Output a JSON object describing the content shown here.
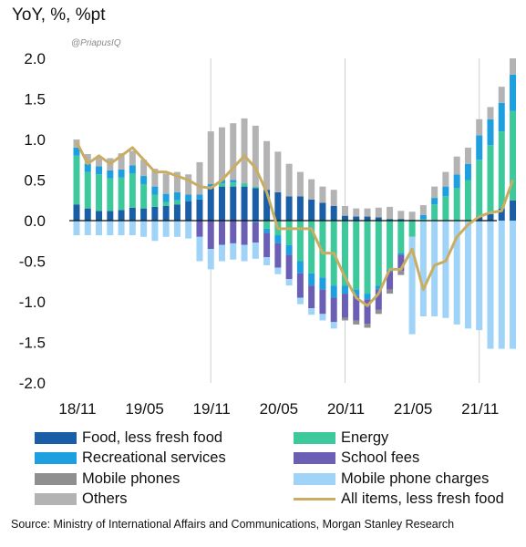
{
  "title": "YoY, %, %pt",
  "watermark": "@PriapusIQ",
  "source": "Source: Ministry of International Affairs and   Communications, Morgan Stanley Research",
  "colors": {
    "food": "#1b5ea8",
    "recreation": "#1ea0e0",
    "mobile_phones": "#8f8f8f",
    "others": "#b3b3b3",
    "energy": "#3ec99c",
    "school_fees": "#6a5fb5",
    "mobile_charges": "#9fd3f7",
    "all_items": "#c9ad63",
    "grid": "#cfcfcf"
  },
  "legend": [
    {
      "key": "food",
      "label": "Food, less fresh food",
      "kind": "bar"
    },
    {
      "key": "energy",
      "label": "Energy",
      "kind": "bar"
    },
    {
      "key": "recreation",
      "label": "Recreational services",
      "kind": "bar"
    },
    {
      "key": "school_fees",
      "label": "School fees",
      "kind": "bar"
    },
    {
      "key": "mobile_phones",
      "label": "Mobile phones",
      "kind": "bar"
    },
    {
      "key": "mobile_charges",
      "label": "Mobile phone charges",
      "kind": "bar"
    },
    {
      "key": "others",
      "label": "Others",
      "kind": "bar"
    },
    {
      "key": "all_items",
      "label": "All items, less fresh food",
      "kind": "line"
    }
  ],
  "chart_data": {
    "type": "bar",
    "stacked": true,
    "ylabel": "YoY, %, %pt",
    "ylim": [
      -2.0,
      2.0
    ],
    "yticks": [
      "2.0",
      "1.5",
      "1.0",
      "0.5",
      "0.0",
      "-0.5",
      "-1.0",
      "-1.5",
      "-2.0"
    ],
    "grid": "vertical at year ticks",
    "x_tick_labels": [
      {
        "label": "18/11",
        "month": 0
      },
      {
        "label": "19/05",
        "month": 6
      },
      {
        "label": "19/11",
        "month": 12
      },
      {
        "label": "20/05",
        "month": 18
      },
      {
        "label": "20/11",
        "month": 24
      },
      {
        "label": "21/05",
        "month": 30
      },
      {
        "label": "21/11",
        "month": 36
      }
    ],
    "x_start": "2018/11",
    "series": [
      {
        "key": "food",
        "name": "Food, less fresh food",
        "values": [
          0.2,
          0.15,
          0.12,
          0.12,
          0.13,
          0.16,
          0.15,
          0.17,
          0.18,
          0.2,
          0.24,
          0.26,
          0.4,
          0.42,
          0.42,
          0.42,
          0.4,
          0.38,
          0.35,
          0.3,
          0.3,
          0.26,
          0.22,
          0.18,
          0.06,
          0.05,
          0.05,
          0.04,
          0.02,
          0.02,
          0.01,
          0.0,
          0.0,
          0.0,
          0.0,
          0.0,
          0.05,
          0.08,
          0.15,
          0.25
        ]
      },
      {
        "key": "energy",
        "name": "Energy",
        "values": [
          0.6,
          0.45,
          0.45,
          0.4,
          0.4,
          0.42,
          0.3,
          0.15,
          0.05,
          0.05,
          0.0,
          0.0,
          0.0,
          0.04,
          0.05,
          0.04,
          0.02,
          -0.1,
          -0.18,
          -0.3,
          -0.5,
          -0.65,
          -0.7,
          -0.8,
          -0.8,
          -0.85,
          -0.9,
          -0.8,
          -0.6,
          -0.4,
          -0.2,
          0.02,
          0.2,
          0.3,
          0.4,
          0.5,
          0.7,
          0.85,
          0.95,
          1.1
        ]
      },
      {
        "key": "recreation",
        "name": "Recreational services",
        "values": [
          0.1,
          0.1,
          0.1,
          0.1,
          0.1,
          0.1,
          0.1,
          0.1,
          0.1,
          0.1,
          0.08,
          0.06,
          0.05,
          0.04,
          0.03,
          0.0,
          -0.02,
          -0.05,
          -0.1,
          -0.12,
          -0.15,
          -0.15,
          -0.15,
          -0.15,
          -0.1,
          -0.08,
          -0.07,
          -0.05,
          -0.03,
          -0.02,
          0.0,
          0.05,
          0.08,
          0.12,
          0.17,
          0.2,
          0.3,
          0.32,
          0.35,
          0.45
        ]
      },
      {
        "key": "school_fees",
        "name": "School fees",
        "values": [
          0.0,
          0.0,
          0.0,
          0.0,
          0.0,
          0.0,
          0.0,
          0.0,
          0.0,
          0.0,
          0.0,
          -0.2,
          -0.35,
          -0.3,
          -0.28,
          -0.3,
          -0.25,
          -0.3,
          -0.3,
          -0.3,
          -0.3,
          -0.28,
          -0.3,
          -0.3,
          -0.3,
          -0.3,
          -0.3,
          -0.25,
          -0.22,
          -0.2,
          0.0,
          0.0,
          0.0,
          0.0,
          0.0,
          0.0,
          0.0,
          0.0,
          0.0,
          0.0
        ]
      },
      {
        "key": "mobile_phones",
        "name": "Mobile phones",
        "values": [
          0.0,
          0.0,
          0.0,
          0.0,
          0.0,
          0.0,
          0.0,
          0.0,
          0.0,
          0.0,
          0.0,
          0.0,
          0.0,
          0.0,
          0.0,
          0.0,
          0.0,
          0.0,
          0.0,
          0.0,
          0.0,
          0.0,
          0.0,
          0.0,
          -0.03,
          -0.05,
          -0.05,
          -0.05,
          -0.05,
          -0.05,
          0.0,
          0.0,
          0.0,
          0.0,
          0.0,
          0.0,
          0.0,
          0.0,
          0.0,
          0.0
        ]
      },
      {
        "key": "others",
        "name": "Others",
        "values": [
          0.1,
          0.12,
          0.12,
          0.15,
          0.2,
          0.18,
          0.2,
          0.22,
          0.25,
          0.25,
          0.25,
          0.4,
          0.65,
          0.65,
          0.7,
          0.8,
          0.75,
          0.6,
          0.5,
          0.4,
          0.3,
          0.25,
          0.2,
          0.2,
          0.12,
          0.1,
          0.1,
          0.12,
          0.15,
          0.1,
          0.1,
          0.12,
          0.14,
          0.18,
          0.22,
          0.2,
          0.2,
          0.15,
          0.2,
          0.2
        ]
      },
      {
        "key": "mobile_charges",
        "name": "Mobile phone charges",
        "values": [
          -0.18,
          -0.18,
          -0.18,
          -0.18,
          -0.18,
          -0.18,
          -0.2,
          -0.25,
          -0.2,
          -0.2,
          -0.22,
          -0.3,
          -0.25,
          -0.2,
          -0.2,
          -0.2,
          -0.2,
          -0.1,
          -0.08,
          -0.08,
          -0.08,
          -0.08,
          -0.08,
          -0.08,
          0.0,
          0.0,
          0.0,
          0.0,
          0.0,
          0.0,
          -1.2,
          -1.18,
          -1.18,
          -1.2,
          -1.28,
          -1.33,
          -1.35,
          -1.58,
          -1.58,
          -1.58
        ]
      },
      {
        "key": "all_items",
        "name": "All items, less fresh food",
        "type": "line",
        "values": [
          0.97,
          0.7,
          0.8,
          0.7,
          0.8,
          0.9,
          0.75,
          0.6,
          0.6,
          0.55,
          0.5,
          0.42,
          0.4,
          0.5,
          0.65,
          0.8,
          0.65,
          0.35,
          -0.1,
          -0.1,
          -0.1,
          -0.1,
          -0.4,
          -0.4,
          -0.7,
          -0.95,
          -1.05,
          -0.9,
          -0.6,
          -0.6,
          -0.35,
          -0.85,
          -0.55,
          -0.5,
          -0.2,
          -0.05,
          0.05,
          0.1,
          0.12,
          0.5
        ]
      }
    ]
  }
}
